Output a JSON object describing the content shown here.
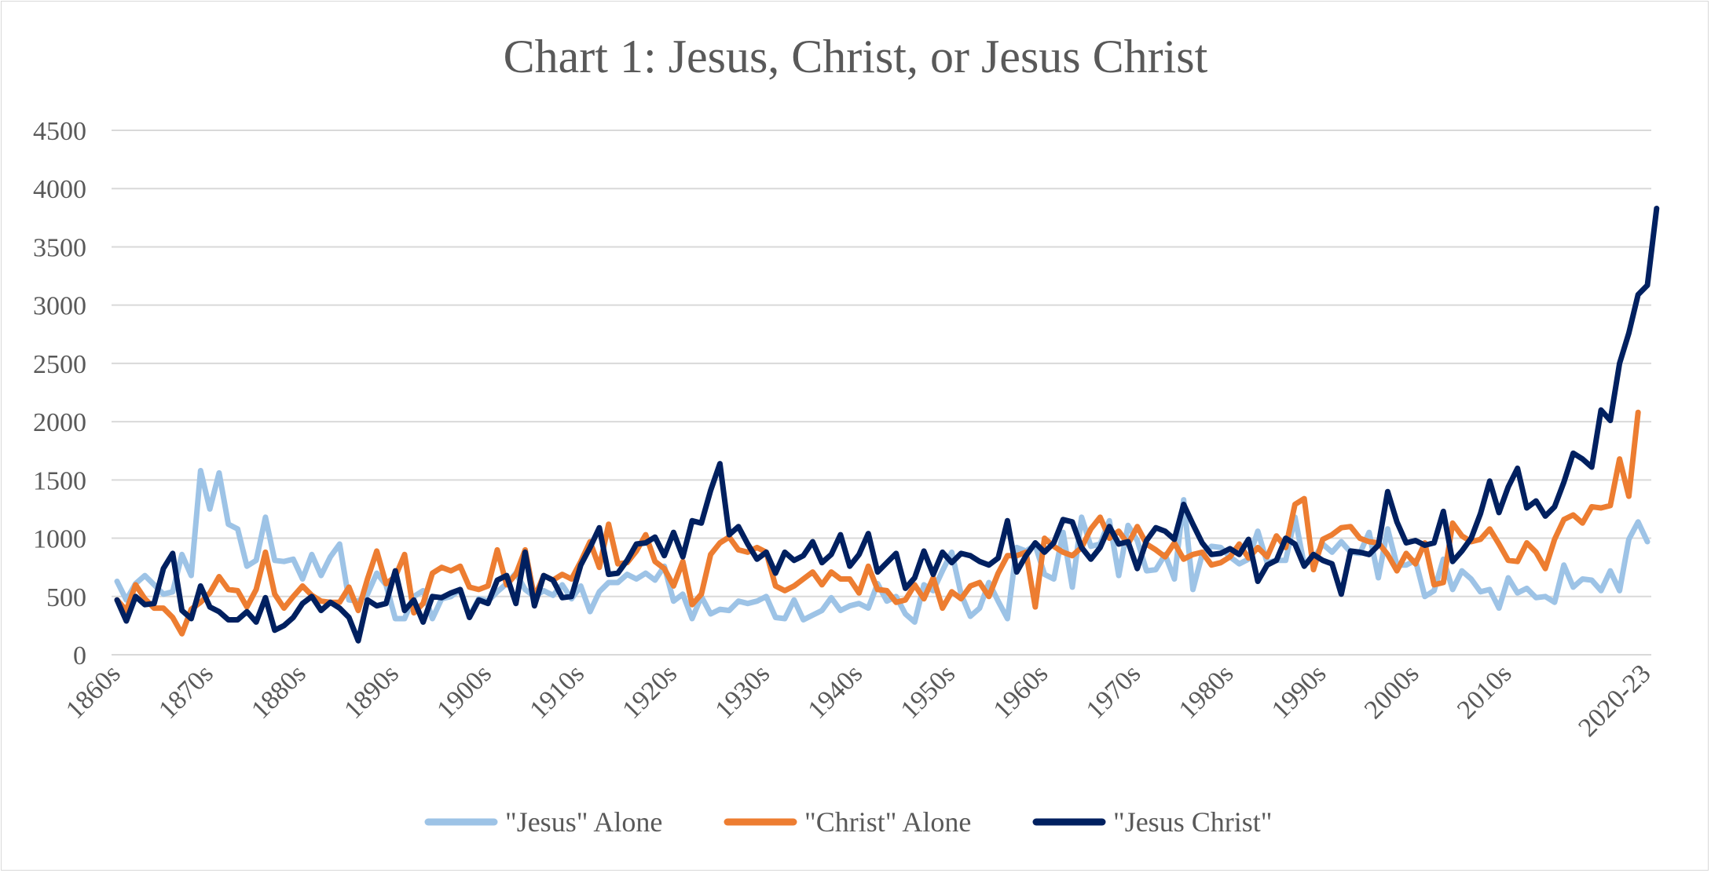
{
  "chart_data": {
    "type": "line",
    "title": "Chart 1: Jesus, Christ, or Jesus Christ",
    "xlabel": "",
    "ylabel": "",
    "ylim": [
      0,
      4500
    ],
    "yticks": [
      0,
      500,
      1000,
      1500,
      2000,
      2500,
      3000,
      3500,
      4000,
      4500
    ],
    "grid": true,
    "legend_position": "bottom",
    "x_start_year": 1860,
    "x_tick_labels": [
      "1860s",
      "1870s",
      "1880s",
      "1890s",
      "1900s",
      "1910s",
      "1920s",
      "1930s",
      "1940s",
      "1950s",
      "1960s",
      "1970s",
      "1980s",
      "1990s",
      "2000s",
      "2010s",
      "2020-23"
    ],
    "series": [
      {
        "name": "\"Jesus\" Alone",
        "color": "#9dc3e6",
        "values": [
          630,
          470,
          610,
          680,
          600,
          520,
          540,
          860,
          680,
          1580,
          1250,
          1560,
          1120,
          1080,
          760,
          810,
          1180,
          810,
          800,
          820,
          650,
          860,
          680,
          840,
          950,
          470,
          460,
          520,
          700,
          600,
          310,
          310,
          500,
          550,
          310,
          480,
          500,
          560,
          330,
          480,
          460,
          540,
          610,
          700,
          560,
          500,
          550,
          510,
          600,
          480,
          590,
          370,
          540,
          620,
          620,
          690,
          650,
          700,
          640,
          760,
          460,
          520,
          310,
          500,
          350,
          390,
          380,
          460,
          440,
          460,
          500,
          320,
          310,
          470,
          300,
          340,
          380,
          490,
          380,
          420,
          440,
          400,
          610,
          460,
          500,
          350,
          280,
          600,
          550,
          720,
          880,
          520,
          330,
          400,
          620,
          460,
          310,
          920,
          890,
          940,
          690,
          650,
          1050,
          580,
          1180,
          930,
          950,
          1150,
          680,
          1110,
          980,
          720,
          730,
          860,
          650,
          1330,
          560,
          860,
          930,
          920,
          840,
          780,
          820,
          1060,
          790,
          810,
          810,
          1180,
          770,
          820,
          950,
          880,
          970,
          880,
          870,
          1050,
          660,
          1080,
          770,
          770,
          810,
          500,
          550,
          820,
          560,
          720,
          650,
          540,
          560,
          400,
          660,
          530,
          570,
          490,
          500,
          450,
          770,
          580,
          650,
          640,
          550,
          720,
          550,
          990,
          1140,
          970
        ]
      },
      {
        "name": "\"Christ\" Alone",
        "color": "#ed7d31",
        "values": [
          470,
          380,
          600,
          480,
          400,
          400,
          320,
          180,
          390,
          450,
          530,
          670,
          560,
          550,
          410,
          560,
          880,
          520,
          400,
          500,
          590,
          510,
          460,
          450,
          450,
          580,
          380,
          650,
          890,
          610,
          670,
          860,
          360,
          440,
          700,
          750,
          720,
          760,
          580,
          560,
          590,
          900,
          600,
          690,
          900,
          490,
          680,
          640,
          690,
          650,
          800,
          970,
          750,
          1120,
          780,
          790,
          890,
          1030,
          800,
          740,
          590,
          800,
          430,
          520,
          860,
          960,
          1010,
          900,
          880,
          920,
          880,
          590,
          550,
          590,
          650,
          710,
          600,
          710,
          650,
          650,
          530,
          760,
          560,
          550,
          450,
          470,
          600,
          480,
          660,
          400,
          540,
          480,
          590,
          620,
          500,
          700,
          850,
          850,
          880,
          410,
          1000,
          930,
          880,
          850,
          920,
          1080,
          1180,
          1000,
          1060,
          950,
          1100,
          950,
          900,
          840,
          960,
          820,
          860,
          880,
          770,
          790,
          840,
          950,
          830,
          920,
          840,
          1020,
          920,
          1290,
          1340,
          730,
          990,
          1030,
          1090,
          1100,
          1000,
          970,
          960,
          860,
          720,
          870,
          780,
          960,
          600,
          620,
          1130,
          1020,
          970,
          990,
          1080,
          950,
          810,
          800,
          960,
          880,
          740,
          990,
          1160,
          1200,
          1130,
          1270,
          1260,
          1280,
          1680,
          1360,
          2080
        ]
      },
      {
        "name": "\"Jesus Christ\"",
        "color": "#002060",
        "values": [
          470,
          290,
          500,
          430,
          440,
          740,
          870,
          380,
          310,
          590,
          410,
          370,
          300,
          300,
          370,
          280,
          490,
          210,
          250,
          320,
          440,
          500,
          380,
          450,
          400,
          320,
          120,
          470,
          420,
          440,
          720,
          380,
          470,
          280,
          500,
          490,
          530,
          560,
          320,
          470,
          440,
          640,
          680,
          440,
          880,
          420,
          680,
          640,
          490,
          500,
          770,
          920,
          1090,
          690,
          700,
          810,
          950,
          960,
          1010,
          850,
          1050,
          840,
          1150,
          1130,
          1410,
          1640,
          1030,
          1100,
          950,
          820,
          880,
          700,
          880,
          810,
          850,
          970,
          790,
          860,
          1030,
          760,
          860,
          1040,
          710,
          790,
          870,
          570,
          660,
          890,
          690,
          880,
          790,
          870,
          850,
          800,
          770,
          830,
          1150,
          710,
          850,
          960,
          880,
          960,
          1160,
          1140,
          920,
          820,
          920,
          1100,
          950,
          970,
          740,
          980,
          1090,
          1060,
          990,
          1290,
          1120,
          960,
          860,
          870,
          910,
          860,
          990,
          630,
          770,
          810,
          1000,
          950,
          760,
          860,
          810,
          780,
          520,
          890,
          880,
          860,
          940,
          1400,
          1140,
          960,
          980,
          940,
          960,
          1230,
          800,
          890,
          1000,
          1210,
          1490,
          1220,
          1440,
          1600,
          1260,
          1320,
          1190,
          1270,
          1480,
          1730,
          1680,
          1610,
          2100,
          2010,
          2500,
          2760,
          3090,
          3170,
          3830
        ]
      }
    ]
  }
}
